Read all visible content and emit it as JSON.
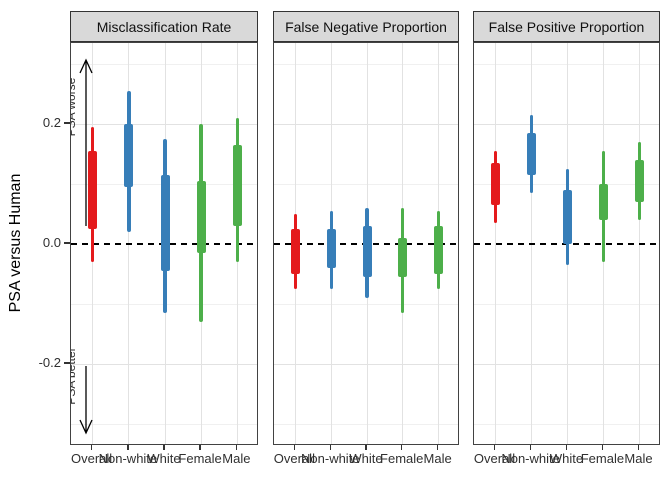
{
  "figure": {
    "y_axis_title": "PSA versus Human"
  },
  "chart_data": {
    "type": "interval",
    "title": "",
    "facet_titles": [
      "Misclassification Rate",
      "False Negative Proportion",
      "False Positive Proportion"
    ],
    "categories": [
      "Overall",
      "Non-white",
      "White",
      "Female",
      "Male"
    ],
    "category_colors": [
      "#E41A1C",
      "#377EB8",
      "#377EB8",
      "#4DAF4A",
      "#4DAF4A"
    ],
    "y_axis": {
      "label": "PSA versus Human",
      "tick_values": [
        0.2,
        0.0,
        -0.2
      ],
      "tick_labels": [
        "0.2",
        "0.0",
        "-0.2"
      ],
      "range": [
        -0.337,
        0.335
      ],
      "gridline_step": 0.1,
      "zero_reference_line": "dashed"
    },
    "annotations": [
      {
        "text": "PSA worse",
        "direction": "up",
        "facet": 0
      },
      {
        "text": "PSA better",
        "direction": "down",
        "facet": 0
      }
    ],
    "legend": "none",
    "facets": [
      {
        "title": "Misclassification Rate",
        "intervals": [
          {
            "category": "Overall",
            "outer_low": -0.03,
            "outer_high": 0.195,
            "inner_low": 0.025,
            "inner_high": 0.155
          },
          {
            "category": "Non-white",
            "outer_low": 0.02,
            "outer_high": 0.255,
            "inner_low": 0.095,
            "inner_high": 0.2
          },
          {
            "category": "White",
            "outer_low": -0.115,
            "outer_high": 0.175,
            "inner_low": -0.045,
            "inner_high": 0.115
          },
          {
            "category": "Female",
            "outer_low": -0.13,
            "outer_high": 0.2,
            "inner_low": -0.015,
            "inner_high": 0.105
          },
          {
            "category": "Male",
            "outer_low": -0.03,
            "outer_high": 0.21,
            "inner_low": 0.03,
            "inner_high": 0.165
          }
        ]
      },
      {
        "title": "False Negative Proportion",
        "intervals": [
          {
            "category": "Overall",
            "outer_low": -0.075,
            "outer_high": 0.05,
            "inner_low": -0.05,
            "inner_high": 0.025
          },
          {
            "category": "Non-white",
            "outer_low": -0.075,
            "outer_high": 0.055,
            "inner_low": -0.04,
            "inner_high": 0.025
          },
          {
            "category": "White",
            "outer_low": -0.09,
            "outer_high": 0.06,
            "inner_low": -0.055,
            "inner_high": 0.03
          },
          {
            "category": "Female",
            "outer_low": -0.115,
            "outer_high": 0.06,
            "inner_low": -0.055,
            "inner_high": 0.01
          },
          {
            "category": "Male",
            "outer_low": -0.075,
            "outer_high": 0.055,
            "inner_low": -0.05,
            "inner_high": 0.03
          }
        ]
      },
      {
        "title": "False Positive Proportion",
        "intervals": [
          {
            "category": "Overall",
            "outer_low": 0.035,
            "outer_high": 0.155,
            "inner_low": 0.065,
            "inner_high": 0.135
          },
          {
            "category": "Non-white",
            "outer_low": 0.085,
            "outer_high": 0.215,
            "inner_low": 0.115,
            "inner_high": 0.185
          },
          {
            "category": "White",
            "outer_low": -0.035,
            "outer_high": 0.125,
            "inner_low": 0.0,
            "inner_high": 0.09
          },
          {
            "category": "Female",
            "outer_low": -0.03,
            "outer_high": 0.155,
            "inner_low": 0.04,
            "inner_high": 0.1
          },
          {
            "category": "Male",
            "outer_low": 0.04,
            "outer_high": 0.17,
            "inner_low": 0.07,
            "inner_high": 0.14
          }
        ]
      }
    ]
  }
}
